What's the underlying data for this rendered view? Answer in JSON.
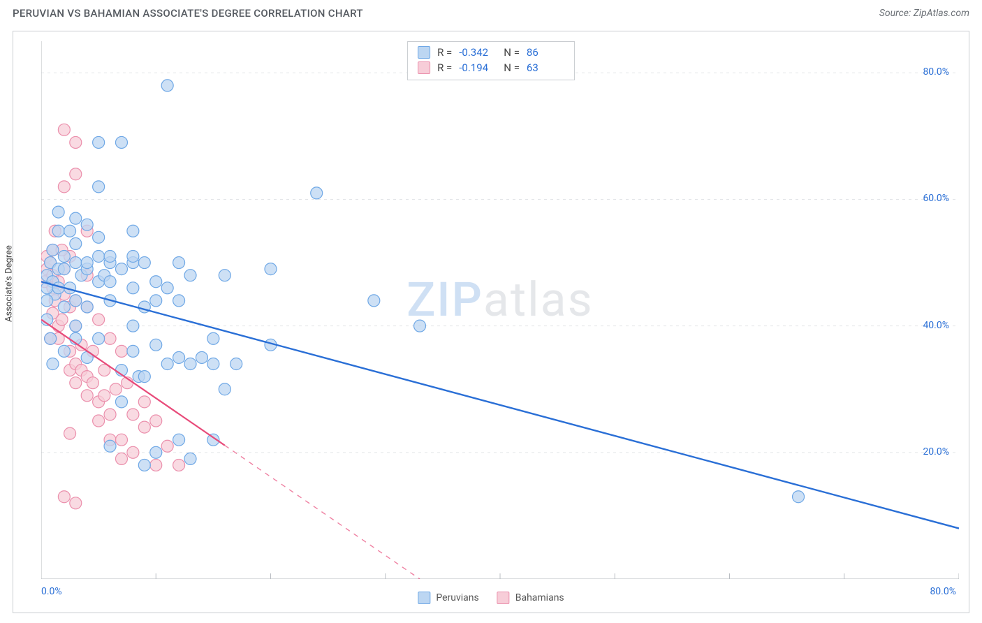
{
  "title": "PERUVIAN VS BAHAMIAN ASSOCIATE'S DEGREE CORRELATION CHART",
  "source_label": "Source: ZipAtlas.com",
  "y_axis_label": "Associate's Degree",
  "watermark": {
    "part1": "ZIP",
    "part2": "atlas"
  },
  "stats": {
    "series1": {
      "r_label": "R =",
      "r_value": "-0.342",
      "n_label": "N =",
      "n_value": "86"
    },
    "series2": {
      "r_label": "R =",
      "r_value": "-0.194",
      "n_label": "N =",
      "n_value": "63"
    }
  },
  "legend": {
    "series1": "Peruvians",
    "series2": "Bahamians"
  },
  "axes": {
    "x_min_label": "0.0%",
    "x_max_label": "80.0%",
    "y_ticks": [
      "20.0%",
      "40.0%",
      "60.0%",
      "80.0%"
    ]
  },
  "chart": {
    "type": "scatter",
    "xlim": [
      0,
      80
    ],
    "ylim": [
      0,
      85
    ],
    "y_gridlines": [
      20,
      40,
      60,
      80
    ],
    "x_ticks_minor": [
      10,
      20,
      30,
      40,
      50,
      60,
      70,
      80
    ],
    "background_color": "#ffffff",
    "grid_color": "#e3e5e8",
    "axis_color": "#b9bdc2",
    "text_color": "#555a60",
    "value_color": "#2a6fd6",
    "marker_radius": 8.5,
    "marker_stroke_width": 1.2,
    "series": {
      "peruvians": {
        "fill": "#bcd6f2",
        "stroke": "#6fa8e6",
        "line_color": "#2a6fd6",
        "line_width": 2.4,
        "trend": {
          "x1": 0,
          "y1": 47,
          "x2": 80,
          "y2": 8,
          "solid_until_x": 80
        },
        "points": [
          [
            0.5,
            48
          ],
          [
            0.8,
            50
          ],
          [
            1,
            47
          ],
          [
            1,
            52
          ],
          [
            1.2,
            45
          ],
          [
            1.5,
            49
          ],
          [
            1.5,
            55
          ],
          [
            1.5,
            58
          ],
          [
            0.5,
            44
          ],
          [
            0.5,
            41
          ],
          [
            0.8,
            38
          ],
          [
            1,
            34
          ],
          [
            2,
            49
          ],
          [
            2,
            51
          ],
          [
            2.5,
            55
          ],
          [
            2.5,
            46
          ],
          [
            3,
            50
          ],
          [
            3,
            53
          ],
          [
            3,
            57
          ],
          [
            3,
            44
          ],
          [
            3.5,
            48
          ],
          [
            4,
            49
          ],
          [
            4,
            50
          ],
          [
            4,
            56
          ],
          [
            5,
            51
          ],
          [
            5,
            47
          ],
          [
            5,
            62
          ],
          [
            5.5,
            48
          ],
          [
            6,
            50
          ],
          [
            6,
            44
          ],
          [
            7,
            49
          ],
          [
            7,
            69
          ],
          [
            8,
            50
          ],
          [
            8,
            55
          ],
          [
            8,
            46
          ],
          [
            8,
            40
          ],
          [
            8,
            36
          ],
          [
            8.5,
            32
          ],
          [
            9,
            50
          ],
          [
            9,
            43
          ],
          [
            9,
            32
          ],
          [
            10,
            47
          ],
          [
            10,
            44
          ],
          [
            10,
            37
          ],
          [
            10,
            20
          ],
          [
            11,
            34
          ],
          [
            11,
            46
          ],
          [
            11,
            78
          ],
          [
            12,
            44
          ],
          [
            12,
            50
          ],
          [
            12,
            35
          ],
          [
            12,
            22
          ],
          [
            13,
            48
          ],
          [
            13,
            34
          ],
          [
            13,
            19
          ],
          [
            15,
            38
          ],
          [
            15,
            34
          ],
          [
            15,
            22
          ],
          [
            16,
            48
          ],
          [
            16,
            30
          ],
          [
            17,
            34
          ],
          [
            20,
            49
          ],
          [
            20,
            37
          ],
          [
            24,
            61
          ],
          [
            29,
            44
          ],
          [
            33,
            40
          ],
          [
            66,
            13
          ],
          [
            6,
            21
          ],
          [
            7,
            28
          ],
          [
            4,
            35
          ],
          [
            3,
            40
          ],
          [
            5,
            38
          ],
          [
            2,
            43
          ],
          [
            0.5,
            46
          ],
          [
            1.5,
            46
          ],
          [
            4,
            43
          ],
          [
            6,
            47
          ],
          [
            5,
            54
          ],
          [
            3,
            38
          ],
          [
            2,
            36
          ],
          [
            8,
            51
          ],
          [
            14,
            35
          ],
          [
            9,
            18
          ],
          [
            7,
            33
          ],
          [
            6,
            51
          ],
          [
            5,
            69
          ]
        ]
      },
      "bahamians": {
        "fill": "#f7cdd8",
        "stroke": "#eb8fac",
        "line_color": "#e84b7a",
        "line_width": 2.2,
        "trend": {
          "x1": 0,
          "y1": 41,
          "x2": 33,
          "y2": 0,
          "solid_until_x": 16
        },
        "points": [
          [
            0.3,
            47
          ],
          [
            0.5,
            49
          ],
          [
            0.5,
            51
          ],
          [
            0.8,
            50
          ],
          [
            1,
            48
          ],
          [
            1,
            46
          ],
          [
            1,
            52
          ],
          [
            1.2,
            55
          ],
          [
            1.2,
            44
          ],
          [
            1.5,
            47
          ],
          [
            1.5,
            40
          ],
          [
            1.5,
            38
          ],
          [
            1.8,
            41
          ],
          [
            2,
            45
          ],
          [
            2,
            49
          ],
          [
            2,
            62
          ],
          [
            2,
            71
          ],
          [
            2.5,
            43
          ],
          [
            2.5,
            36
          ],
          [
            2.5,
            33
          ],
          [
            3,
            44
          ],
          [
            3,
            40
          ],
          [
            3,
            34
          ],
          [
            3,
            31
          ],
          [
            3,
            69
          ],
          [
            3.5,
            37
          ],
          [
            3.5,
            33
          ],
          [
            4,
            43
          ],
          [
            4,
            48
          ],
          [
            4,
            55
          ],
          [
            4,
            32
          ],
          [
            4,
            29
          ],
          [
            4.5,
            36
          ],
          [
            4.5,
            31
          ],
          [
            5,
            41
          ],
          [
            5,
            28
          ],
          [
            5,
            25
          ],
          [
            5.5,
            33
          ],
          [
            5.5,
            29
          ],
          [
            6,
            38
          ],
          [
            6,
            26
          ],
          [
            6,
            22
          ],
          [
            6.5,
            30
          ],
          [
            7,
            36
          ],
          [
            7,
            22
          ],
          [
            7,
            19
          ],
          [
            7.5,
            31
          ],
          [
            8,
            26
          ],
          [
            8,
            20
          ],
          [
            9,
            24
          ],
          [
            9,
            28
          ],
          [
            10,
            18
          ],
          [
            10,
            25
          ],
          [
            11,
            21
          ],
          [
            12,
            18
          ],
          [
            3,
            64
          ],
          [
            2.5,
            51
          ],
          [
            1,
            42
          ],
          [
            1.8,
            52
          ],
          [
            2,
            13
          ],
          [
            2.5,
            23
          ],
          [
            3,
            12
          ],
          [
            0.8,
            38
          ]
        ]
      }
    }
  }
}
